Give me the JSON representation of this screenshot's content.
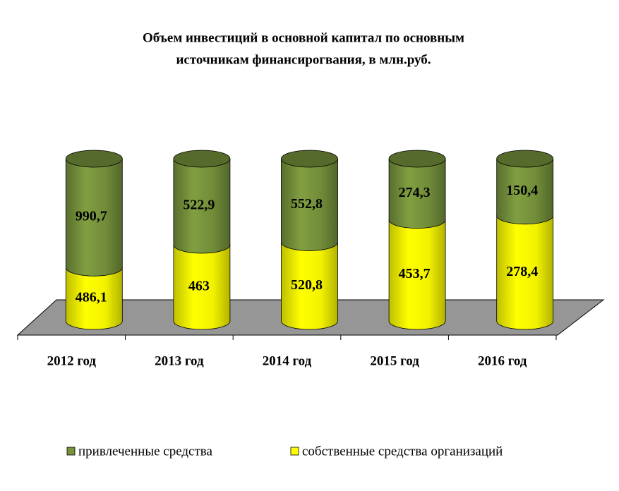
{
  "chart_data": {
    "type": "bar",
    "stacking": "percent",
    "shape": "cylinder",
    "title": "Объем инвестиций  в основной капитал по основным",
    "subtitle": "источникам финансирогвания,  в млн.руб.",
    "categories": [
      "2012 год",
      "2013 год",
      "2014 год",
      "2015 год",
      "2016 год"
    ],
    "series": [
      {
        "name": "собственные средства организаций",
        "color": "#ffff00",
        "values": [
          486.1,
          463,
          520.8,
          453.7,
          278.4
        ],
        "value_labels": [
          "486,1",
          "463",
          "520,8",
          "453,7",
          "278,4"
        ]
      },
      {
        "name": "привлеченные средства",
        "color": "#77933c",
        "values": [
          990.7,
          522.9,
          552.8,
          274.3,
          150.4
        ],
        "value_labels": [
          "990,7",
          "522,9",
          "552,8",
          "274,3",
          "150,4"
        ]
      }
    ],
    "legend": "bottom"
  }
}
